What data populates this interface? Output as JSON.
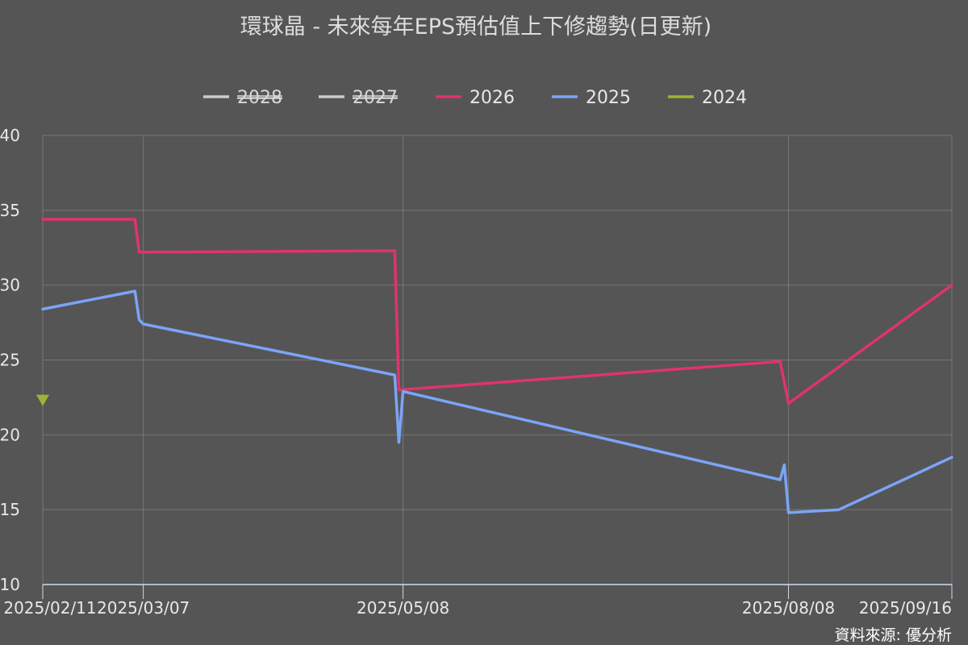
{
  "chart_data": {
    "type": "line",
    "title": "環球晶 - 未來每年EPS預估值上下修趨勢(日更新)",
    "source": "資料來源: 優分析",
    "ylim": [
      10,
      40
    ],
    "yticks": [
      10,
      15,
      20,
      25,
      30,
      35,
      40
    ],
    "xlim": [
      "2025-02-11",
      "2025-09-16"
    ],
    "xticks": [
      {
        "date": "2025-02-11",
        "label": "2025/02/11"
      },
      {
        "date": "2025-03-07",
        "label": "2025/03/07"
      },
      {
        "date": "2025-05-08",
        "label": "2025/05/08"
      },
      {
        "date": "2025-08-08",
        "label": "2025/08/08"
      },
      {
        "date": "2025-09-16",
        "label": "2025/09/16"
      }
    ],
    "grid": true,
    "legend_position": "top",
    "series": [
      {
        "name": "2028",
        "color": "#cccccc",
        "disabled": true,
        "points": []
      },
      {
        "name": "2027",
        "color": "#cccccc",
        "disabled": true,
        "points": []
      },
      {
        "name": "2026",
        "color": "#e0346a",
        "disabled": false,
        "marker": "none",
        "points": [
          {
            "x": "2025-02-11",
            "y": 34.4
          },
          {
            "x": "2025-03-05",
            "y": 34.4
          },
          {
            "x": "2025-03-06",
            "y": 32.2
          },
          {
            "x": "2025-05-06",
            "y": 32.3
          },
          {
            "x": "2025-05-07",
            "y": 23.0
          },
          {
            "x": "2025-08-06",
            "y": 24.9
          },
          {
            "x": "2025-08-08",
            "y": 22.1
          },
          {
            "x": "2025-09-16",
            "y": 30.0
          }
        ]
      },
      {
        "name": "2025",
        "color": "#7ba4f7",
        "disabled": false,
        "marker": "none",
        "points": [
          {
            "x": "2025-02-11",
            "y": 28.4
          },
          {
            "x": "2025-03-05",
            "y": 29.6
          },
          {
            "x": "2025-03-06",
            "y": 27.7
          },
          {
            "x": "2025-03-07",
            "y": 27.4
          },
          {
            "x": "2025-05-06",
            "y": 24.0
          },
          {
            "x": "2025-05-07",
            "y": 19.5
          },
          {
            "x": "2025-05-08",
            "y": 22.9
          },
          {
            "x": "2025-08-06",
            "y": 17.0
          },
          {
            "x": "2025-08-07",
            "y": 18.0
          },
          {
            "x": "2025-08-08",
            "y": 14.8
          },
          {
            "x": "2025-08-20",
            "y": 15.0
          },
          {
            "x": "2025-09-16",
            "y": 18.5
          }
        ]
      },
      {
        "name": "2024",
        "color": "#9bb532",
        "disabled": false,
        "marker": "triangle-down",
        "points": [
          {
            "x": "2025-02-11",
            "y": 22.3
          }
        ]
      }
    ]
  }
}
